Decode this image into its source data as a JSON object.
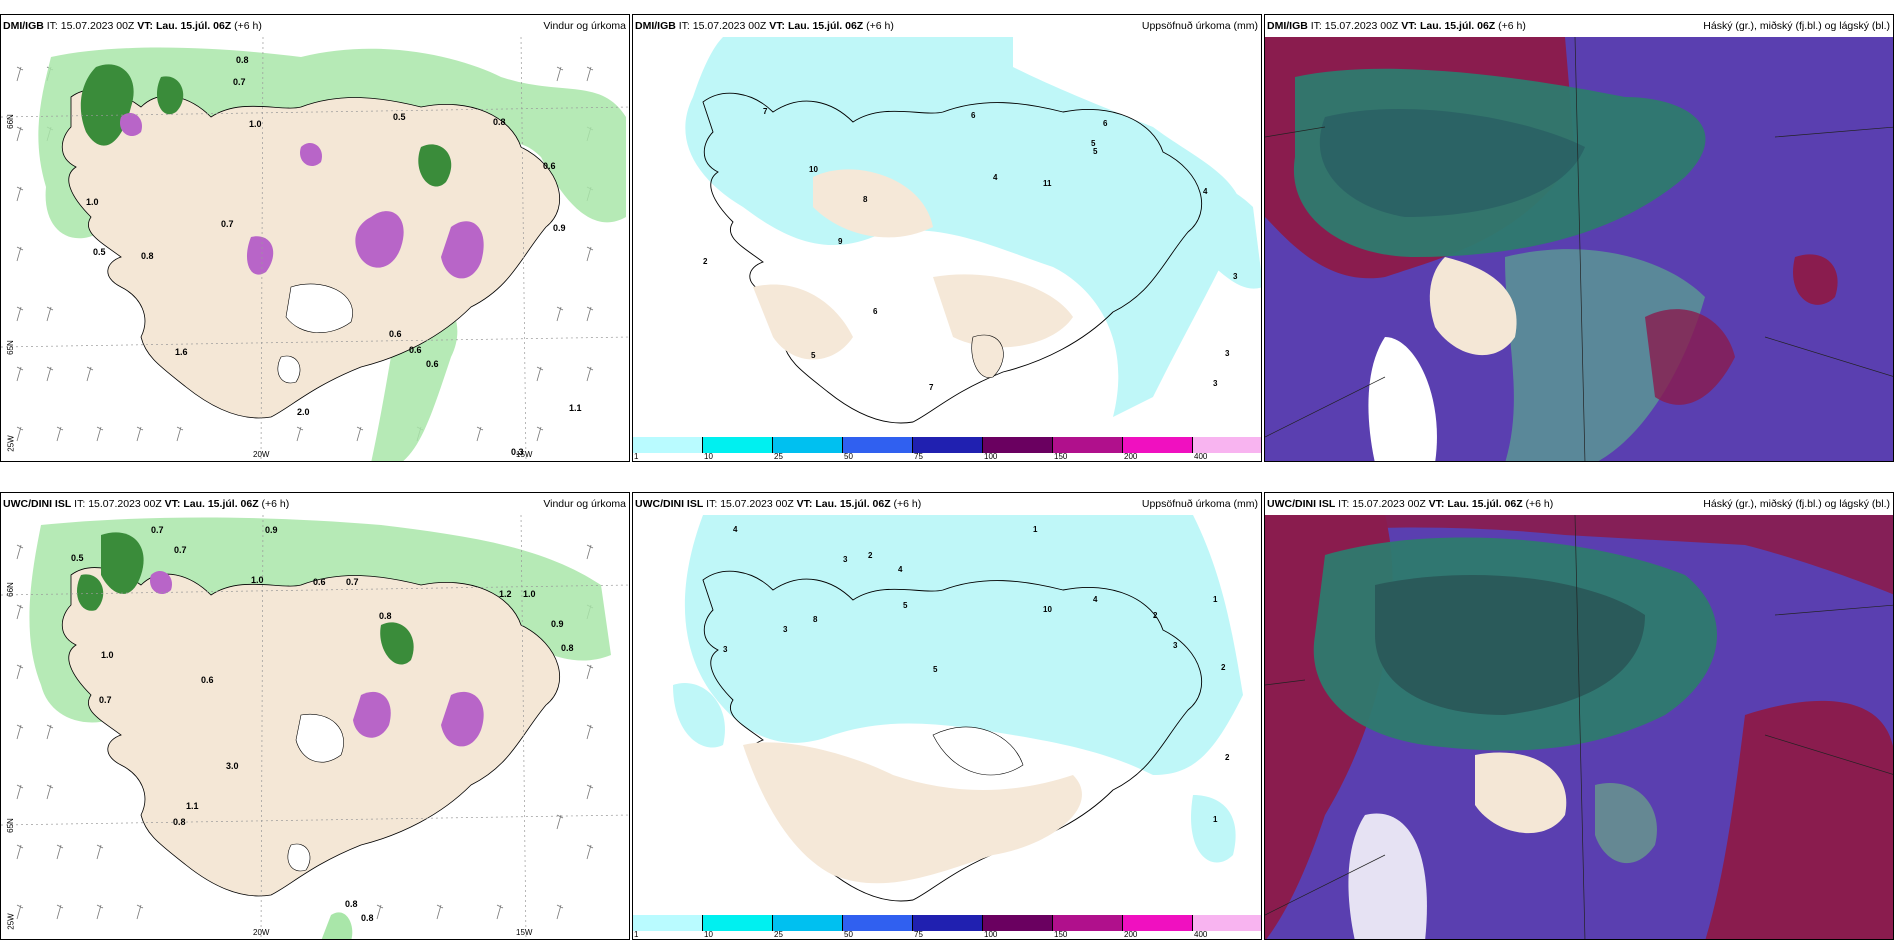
{
  "rows": [
    {
      "model": "DMI/IGB",
      "panels": [
        {
          "it_label": "IT:",
          "it": "15.07.2023 00Z",
          "vt_label": "VT:",
          "vt": "Lau. 15.júl. 06Z",
          "lead": "(+6 h)",
          "title": "Vindur og úrkoma",
          "values": [
            "0.7",
            "0.8",
            "1.0",
            "0.5",
            "0.8",
            "0.6",
            "1.0",
            "0.7",
            "0.8",
            "0.5",
            "0.9",
            "0.6",
            "0.6",
            "0.6",
            "2.0",
            "1.1",
            "0.3",
            "1.6"
          ],
          "lat_labels": [
            "66N",
            "65N",
            "25W"
          ],
          "lon_labels": [
            "20W",
            "15W"
          ]
        },
        {
          "it_label": "IT:",
          "it": "15.07.2023 00Z",
          "vt_label": "VT:",
          "vt": "Lau. 15.júl. 06Z",
          "lead": "(+6 h)",
          "title": "Uppsöfnuð úrkoma (mm)",
          "values": [
            "7",
            "10",
            "8",
            "6",
            "4",
            "11",
            "5",
            "9",
            "2",
            "6",
            "5",
            "7",
            "6",
            "5",
            "4",
            "3",
            "3",
            "3"
          ]
        },
        {
          "it_label": "IT:",
          "it": "15.07.2023 00Z",
          "vt_label": "VT:",
          "vt": "Lau. 15.júl. 06Z",
          "lead": "(+6 h)",
          "title": "Háský (gr.), miðský (fj.bl.) og lágský (bl.)"
        }
      ]
    },
    {
      "model": "UWC/DINI ISL",
      "panels": [
        {
          "it_label": "IT:",
          "it": "15.07.2023 00Z",
          "vt_label": "VT:",
          "vt": "Lau. 15.júl. 06Z",
          "lead": "(+6 h)",
          "title": "Vindur og úrkoma",
          "values": [
            "0.7",
            "0.5",
            "0.7",
            "1.0",
            "0.7",
            "0.9",
            "1.0",
            "0.6",
            "0.7",
            "0.8",
            "0.6",
            "1.2",
            "1.0",
            "0.9",
            "0.8",
            "3.0",
            "1.1",
            "0.8",
            "0.8",
            "0.8"
          ],
          "lat_labels": [
            "66N",
            "65N",
            "25W"
          ],
          "lon_labels": [
            "20W",
            "15W"
          ]
        },
        {
          "it_label": "IT:",
          "it": "15.07.2023 00Z",
          "vt_label": "VT:",
          "vt": "Lau. 15.júl. 06Z",
          "lead": "(+6 h)",
          "title": "Uppsöfnuð úrkoma (mm)",
          "values": [
            "4",
            "3",
            "2",
            "4",
            "5",
            "10",
            "3",
            "8",
            "1",
            "3",
            "5",
            "4",
            "2",
            "3",
            "1",
            "2",
            "2",
            "1"
          ]
        },
        {
          "it_label": "IT:",
          "it": "15.07.2023 00Z",
          "vt_label": "VT:",
          "vt": "Lau. 15.júl. 06Z",
          "lead": "(+6 h)",
          "title": "Háský (gr.), miðský (fj.bl.) og lágský (bl.)"
        }
      ]
    }
  ],
  "colorbar": {
    "ticks": [
      "1",
      "10",
      "25",
      "50",
      "75",
      "100",
      "150",
      "200",
      "400"
    ],
    "colors": [
      "#b9fbff",
      "#00f0f0",
      "#00c0f0",
      "#3060f0",
      "#2020b0",
      "#6a0060",
      "#b0108c",
      "#f010c0",
      "#f8b4f0"
    ]
  },
  "colors": {
    "land": "#f5e8d8",
    "sea": "#ffffff",
    "precip_green": "#8edb8e",
    "precip_dark": "#1e7a2c",
    "precip_magenta": "#c050c0",
    "accum": "#bff7f8",
    "cloud_high": "#5a3fb0",
    "cloud_mid": "#2e7a6e",
    "cloud_low": "#9a1c4c"
  }
}
